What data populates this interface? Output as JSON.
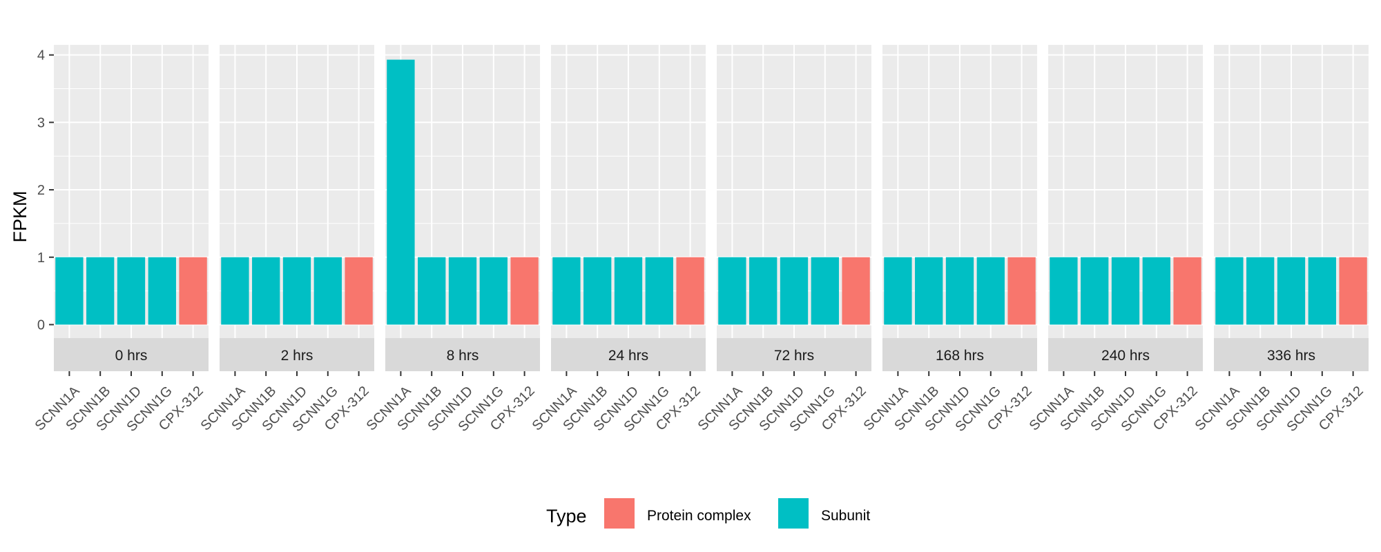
{
  "chart_data": {
    "type": "bar",
    "ylabel": "FPKM",
    "ylim": [
      -0.2,
      4.15
    ],
    "yticks": [
      "0",
      "1",
      "2",
      "3",
      "4"
    ],
    "categories": [
      "SCNN1A",
      "SCNN1B",
      "SCNN1D",
      "SCNN1G",
      "CPX-312"
    ],
    "category_types": [
      "Subunit",
      "Subunit",
      "Subunit",
      "Subunit",
      "Protein complex"
    ],
    "panels": [
      {
        "label": "0 hrs",
        "values": [
          1,
          1,
          1,
          1,
          1
        ]
      },
      {
        "label": "2 hrs",
        "values": [
          1,
          1,
          1,
          1,
          1
        ]
      },
      {
        "label": "8 hrs",
        "values": [
          3.93,
          1,
          1,
          1,
          1
        ]
      },
      {
        "label": "24 hrs",
        "values": [
          1,
          1,
          1,
          1,
          1
        ]
      },
      {
        "label": "72 hrs",
        "values": [
          1,
          1,
          1,
          1,
          1
        ]
      },
      {
        "label": "168 hrs",
        "values": [
          1,
          1,
          1,
          1,
          1
        ]
      },
      {
        "label": "240 hrs",
        "values": [
          1,
          1,
          1,
          1,
          1
        ]
      },
      {
        "label": "336 hrs",
        "values": [
          1,
          1,
          1,
          1,
          1
        ]
      }
    ],
    "legend": {
      "title": "Type",
      "position": "bottom",
      "entries": [
        {
          "label": "Protein complex",
          "color": "#F8766D"
        },
        {
          "label": "Subunit",
          "color": "#00BFC4"
        }
      ]
    },
    "grid": true,
    "panel_background": "#EBEBEB",
    "strip_background": "#D9D9D9"
  }
}
